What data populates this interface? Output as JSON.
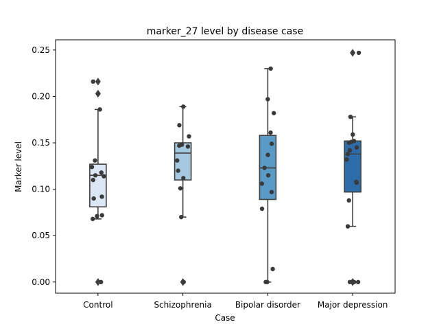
{
  "chart_data": {
    "type": "box",
    "title": "marker_27 level by disease case",
    "xlabel": "Case",
    "ylabel": "Marker level",
    "ylim": [
      -0.012,
      0.261
    ],
    "yticks": [
      "0.00",
      "0.05",
      "0.10",
      "0.15",
      "0.20",
      "0.25"
    ],
    "ytick_values": [
      0.0,
      0.05,
      0.1,
      0.15,
      0.2,
      0.25
    ],
    "grid": false,
    "categories": [
      "Control",
      "Schizophrenia",
      "Bipolar disorder",
      "Major depression"
    ],
    "boxes": [
      {
        "category": "Control",
        "color": "#dbe7f4",
        "q1": 0.081,
        "median": 0.115,
        "q3": 0.127,
        "whisker_low": 0.068,
        "whisker_high": 0.186,
        "outliers": [
          0.0,
          0.203,
          0.216
        ],
        "points": [
          0.0,
          0.068,
          0.071,
          0.072,
          0.09,
          0.092,
          0.11,
          0.114,
          0.115,
          0.118,
          0.124,
          0.131,
          0.186,
          0.203,
          0.216
        ]
      },
      {
        "category": "Schizophrenia",
        "color": "#a4c8e0",
        "q1": 0.11,
        "median": 0.139,
        "q3": 0.15,
        "whisker_low": 0.07,
        "whisker_high": 0.189,
        "outliers": [
          0.0
        ],
        "points": [
          0.0,
          0.07,
          0.101,
          0.112,
          0.12,
          0.131,
          0.146,
          0.147,
          0.148,
          0.157,
          0.169,
          0.189
        ]
      },
      {
        "category": "Bipolar disorder",
        "color": "#5a9ac6",
        "q1": 0.089,
        "median": 0.123,
        "q3": 0.158,
        "whisker_low": 0.0,
        "whisker_high": 0.23,
        "outliers": [],
        "points": [
          0.0,
          0.0,
          0.014,
          0.079,
          0.097,
          0.106,
          0.115,
          0.123,
          0.137,
          0.149,
          0.161,
          0.182,
          0.197,
          0.23
        ]
      },
      {
        "category": "Major depression",
        "color": "#2c6ca8",
        "q1": 0.097,
        "median": 0.138,
        "q3": 0.152,
        "whisker_low": 0.06,
        "whisker_high": 0.178,
        "outliers": [
          0.0,
          0.0,
          0.247
        ],
        "points": [
          0.0,
          0.0,
          0.0,
          0.06,
          0.088,
          0.107,
          0.108,
          0.132,
          0.138,
          0.142,
          0.145,
          0.15,
          0.151,
          0.152,
          0.159,
          0.178,
          0.247
        ]
      }
    ]
  }
}
